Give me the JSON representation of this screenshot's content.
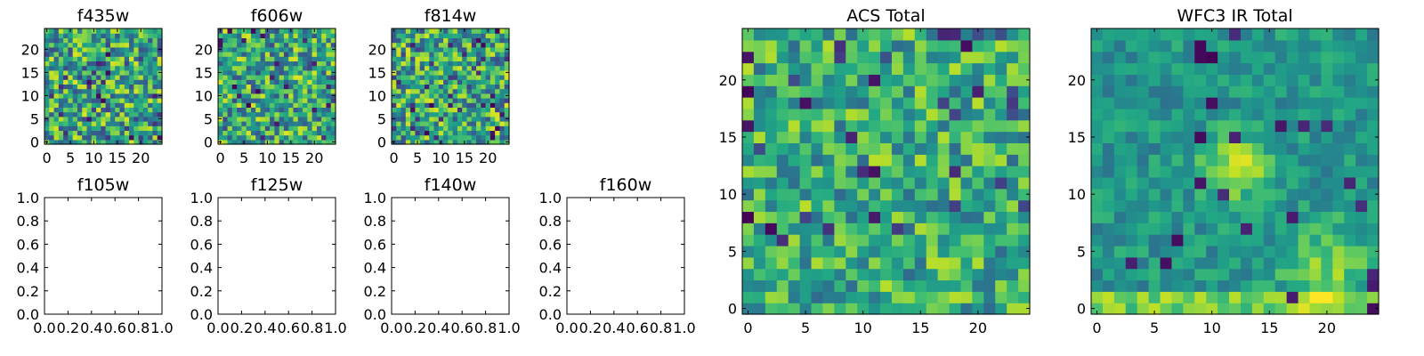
{
  "chart_data": [
    {
      "type": "heatmap",
      "title": "f435w",
      "xlim": [
        -0.5,
        24.5
      ],
      "ylim": [
        -0.5,
        24.5
      ],
      "xticks": [
        "0",
        "5",
        "10",
        "15",
        "20"
      ],
      "yticks": [
        "0",
        "5",
        "10",
        "15",
        "20"
      ],
      "grid_size": [
        25,
        25
      ],
      "colormap": "viridis",
      "seed": 435,
      "style": "noise"
    },
    {
      "type": "heatmap",
      "title": "f606w",
      "xlim": [
        -0.5,
        24.5
      ],
      "ylim": [
        -0.5,
        24.5
      ],
      "xticks": [
        "0",
        "5",
        "10",
        "15",
        "20"
      ],
      "yticks": [
        "0",
        "5",
        "10",
        "15",
        "20"
      ],
      "grid_size": [
        25,
        25
      ],
      "colormap": "viridis",
      "seed": 606,
      "style": "noise"
    },
    {
      "type": "heatmap",
      "title": "f814w",
      "xlim": [
        -0.5,
        24.5
      ],
      "ylim": [
        -0.5,
        24.5
      ],
      "xticks": [
        "0",
        "5",
        "10",
        "15",
        "20"
      ],
      "yticks": [
        "0",
        "5",
        "10",
        "15",
        "20"
      ],
      "grid_size": [
        25,
        25
      ],
      "colormap": "viridis",
      "seed": 814,
      "style": "noise"
    },
    {
      "type": "empty",
      "title": "f105w",
      "xlim": [
        0,
        1
      ],
      "ylim": [
        0,
        1
      ],
      "xticks": [
        "0.0",
        "0.2",
        "0.4",
        "0.6",
        "0.8",
        "1.0"
      ],
      "yticks": [
        "0.0",
        "0.2",
        "0.4",
        "0.6",
        "0.8",
        "1.0"
      ]
    },
    {
      "type": "empty",
      "title": "f125w",
      "xlim": [
        0,
        1
      ],
      "ylim": [
        0,
        1
      ],
      "xticks": [
        "0.0",
        "0.2",
        "0.4",
        "0.6",
        "0.8",
        "1.0"
      ],
      "yticks": [
        "0.0",
        "0.2",
        "0.4",
        "0.6",
        "0.8",
        "1.0"
      ]
    },
    {
      "type": "empty",
      "title": "f140w",
      "xlim": [
        0,
        1
      ],
      "ylim": [
        0,
        1
      ],
      "xticks": [
        "0.0",
        "0.2",
        "0.4",
        "0.6",
        "0.8",
        "1.0"
      ],
      "yticks": [
        "0.0",
        "0.2",
        "0.4",
        "0.6",
        "0.8",
        "1.0"
      ]
    },
    {
      "type": "empty",
      "title": "f160w",
      "xlim": [
        0,
        1
      ],
      "ylim": [
        0,
        1
      ],
      "xticks": [
        "0.0",
        "0.2",
        "0.4",
        "0.6",
        "0.8",
        "1.0"
      ],
      "yticks": [
        "0.0",
        "0.2",
        "0.4",
        "0.6",
        "0.8",
        "1.0"
      ]
    },
    {
      "type": "heatmap",
      "title": "ACS Total",
      "xlim": [
        -0.5,
        24.5
      ],
      "ylim": [
        -0.5,
        24.5
      ],
      "xticks": [
        "0",
        "5",
        "10",
        "15",
        "20"
      ],
      "yticks": [
        "0",
        "5",
        "10",
        "15",
        "20"
      ],
      "grid_size": [
        25,
        25
      ],
      "colormap": "viridis",
      "seed": 1001,
      "style": "noise-bright"
    },
    {
      "type": "heatmap",
      "title": "WFC3 IR Total",
      "xlim": [
        -0.5,
        24.5
      ],
      "ylim": [
        -0.5,
        24.5
      ],
      "xticks": [
        "0",
        "5",
        "10",
        "15",
        "20"
      ],
      "yticks": [
        "0",
        "5",
        "10",
        "15",
        "20"
      ],
      "grid_size": [
        25,
        25
      ],
      "colormap": "viridis",
      "seed": 2002,
      "style": "smooth-source"
    }
  ]
}
